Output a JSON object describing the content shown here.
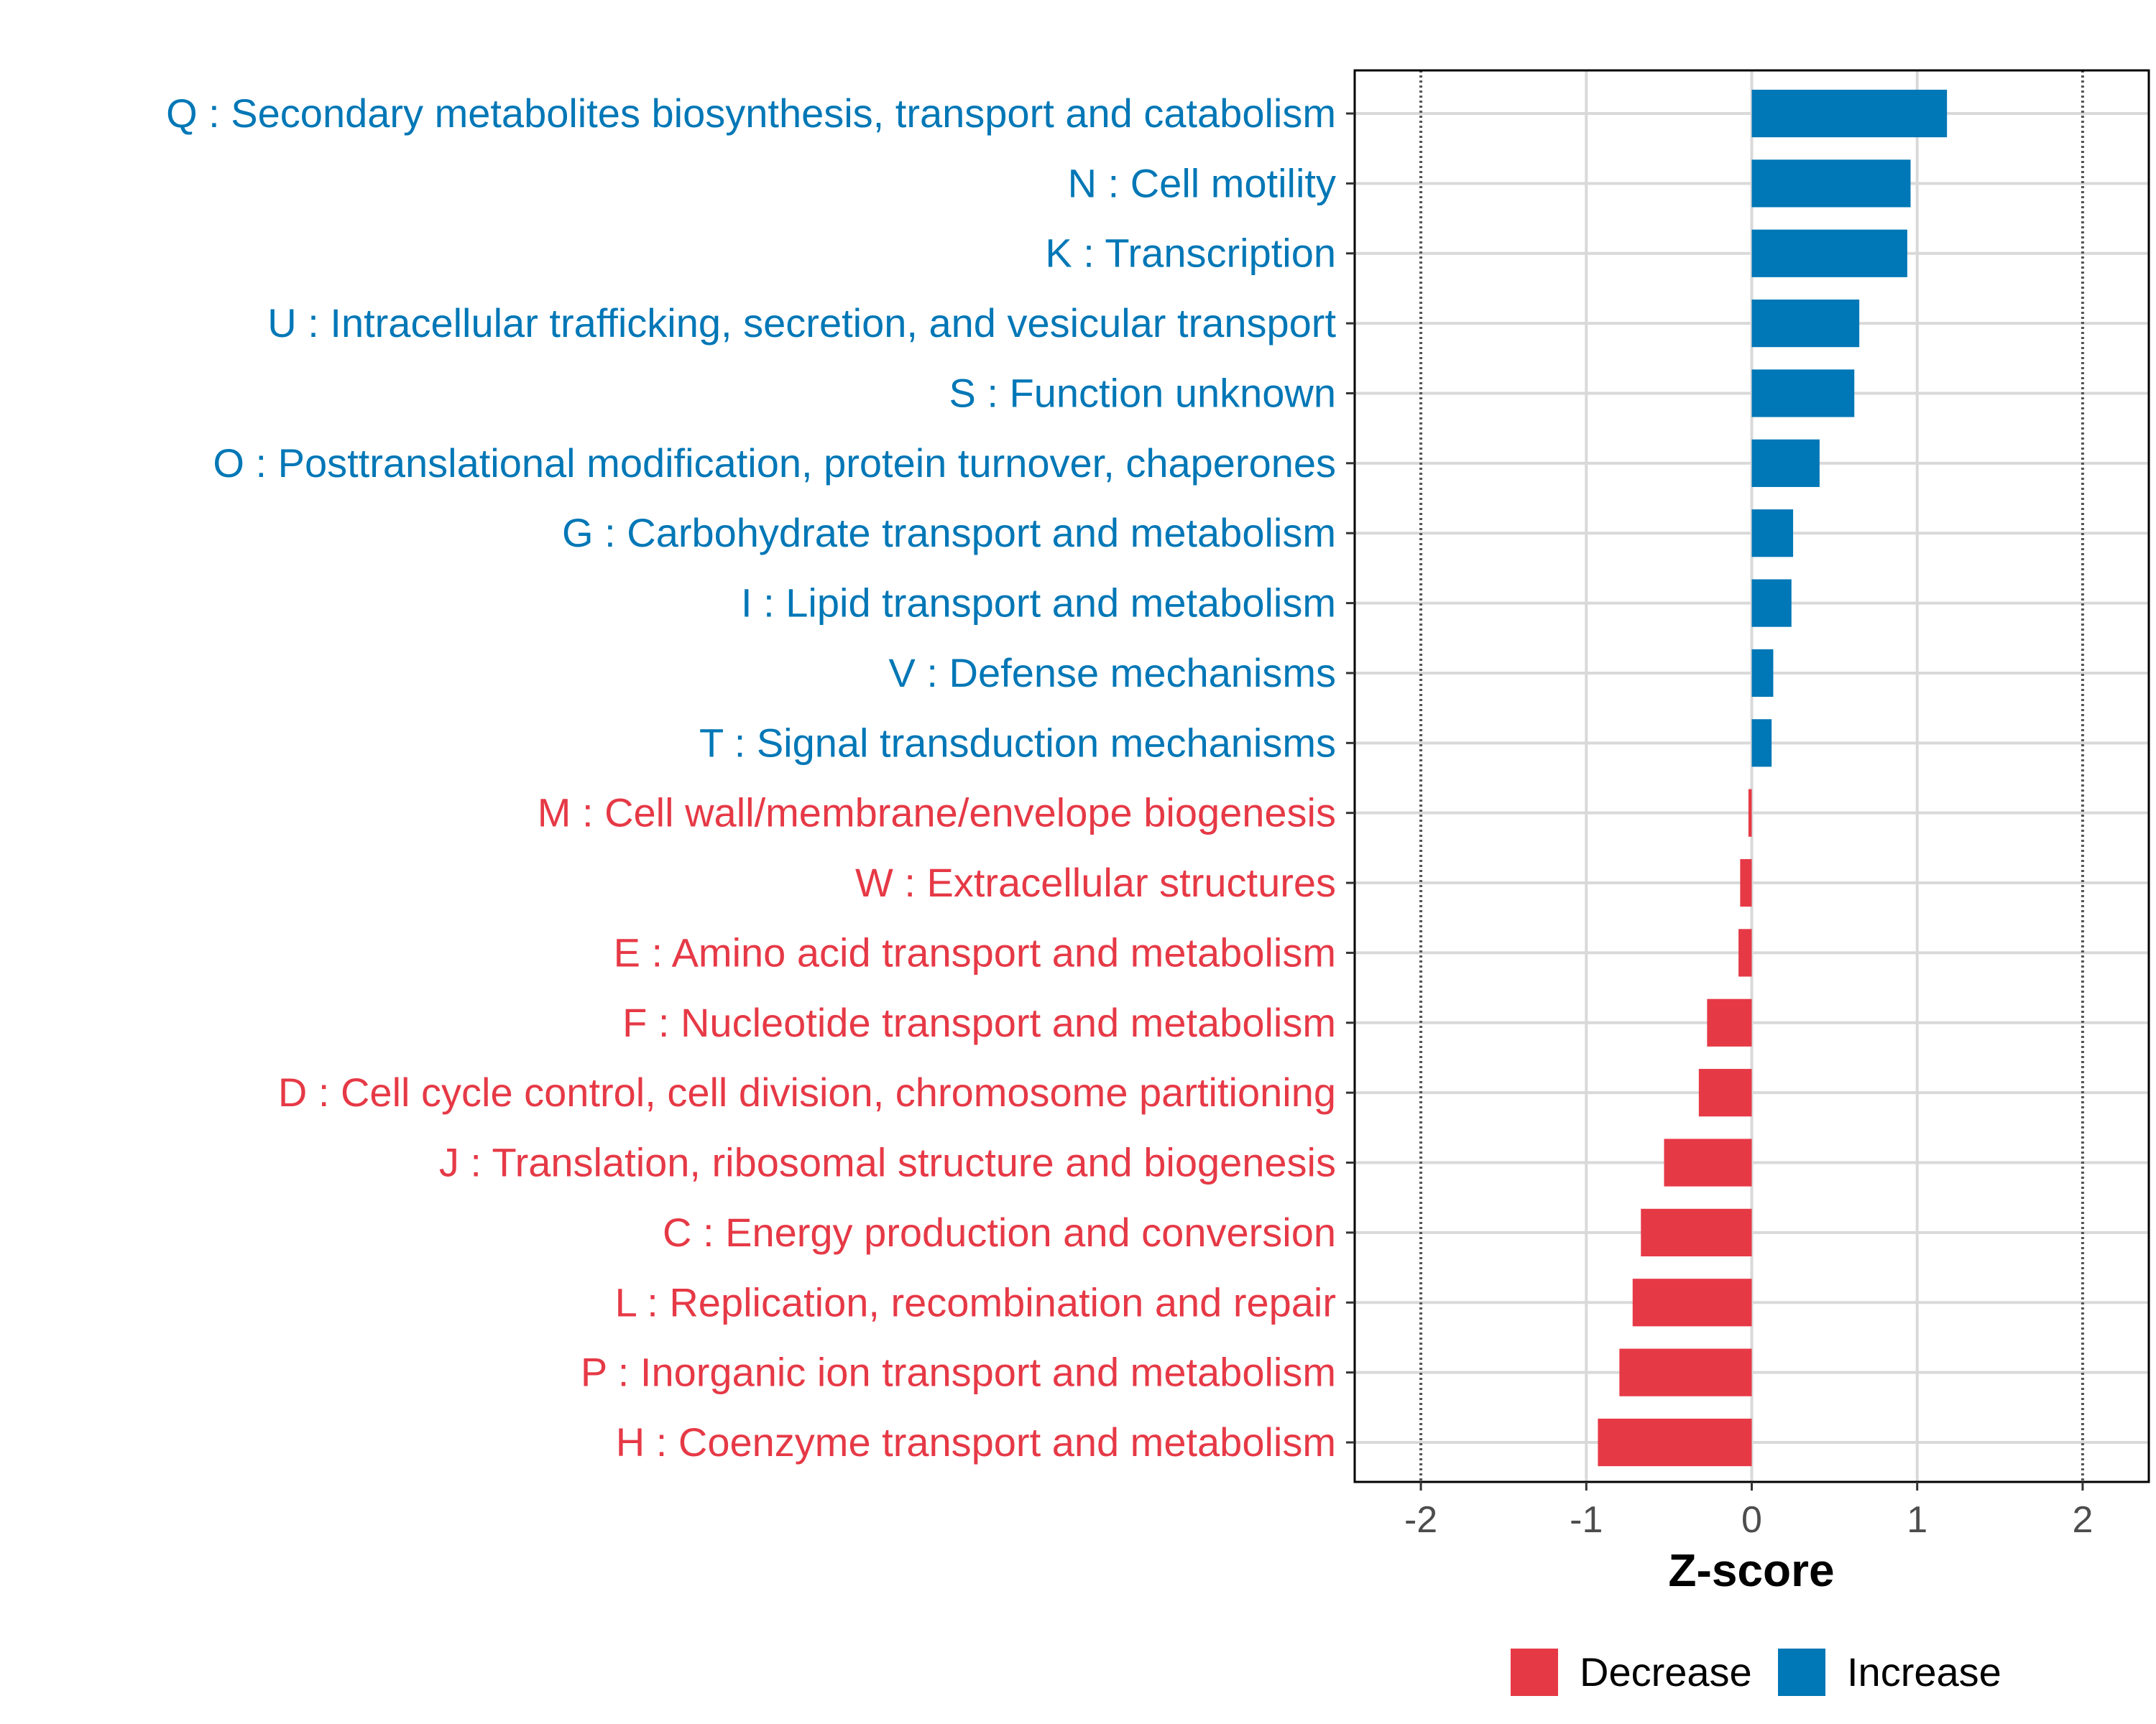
{
  "chart_data": {
    "type": "bar",
    "orientation": "horizontal",
    "title": "",
    "xlabel": "Z-score",
    "ylabel": "",
    "xlim": [
      -2.4,
      2.4
    ],
    "xticks": [
      -2,
      -1,
      0,
      1,
      2
    ],
    "xtick_labels": [
      "-2",
      "-1",
      "0",
      "1",
      "2"
    ],
    "reference_lines": [
      -2,
      2
    ],
    "grid": true,
    "categories": [
      "Q : Secondary metabolites biosynthesis, transport and catabolism",
      "N : Cell motility",
      "K : Transcription",
      "U : Intracellular trafficking, secretion, and vesicular transport",
      "S : Function unknown",
      "O : Posttranslational modification, protein turnover, chaperones",
      "G : Carbohydrate transport and metabolism",
      "I : Lipid transport and metabolism",
      "V : Defense mechanisms",
      "T : Signal transduction mechanisms",
      "M : Cell wall/membrane/envelope biogenesis",
      "W : Extracellular structures",
      "E : Amino acid transport and metabolism",
      "F : Nucleotide transport and metabolism",
      "D : Cell cycle control, cell division, chromosome partitioning",
      "J : Translation, ribosomal structure and biogenesis",
      "C : Energy production and conversion",
      "L : Replication, recombination and repair",
      "P : Inorganic ion transport and metabolism",
      "H : Coenzyme transport and metabolism"
    ],
    "values": [
      1.18,
      0.96,
      0.94,
      0.65,
      0.62,
      0.41,
      0.25,
      0.24,
      0.13,
      0.12,
      -0.02,
      -0.07,
      -0.08,
      -0.27,
      -0.32,
      -0.53,
      -0.67,
      -0.72,
      -0.8,
      -0.93
    ],
    "groups": [
      "Increase",
      "Increase",
      "Increase",
      "Increase",
      "Increase",
      "Increase",
      "Increase",
      "Increase",
      "Increase",
      "Increase",
      "Decrease",
      "Decrease",
      "Decrease",
      "Decrease",
      "Decrease",
      "Decrease",
      "Decrease",
      "Decrease",
      "Decrease",
      "Decrease"
    ],
    "legend": {
      "position": "bottom-right",
      "entries": [
        {
          "label": "Decrease",
          "color": "#E63946"
        },
        {
          "label": "Increase",
          "color": "#0077B6"
        }
      ]
    },
    "colors": {
      "Decrease": "#E63946",
      "Increase": "#0077B6",
      "grid": "#d9d9d9",
      "frame": "#000000",
      "reference_line": "#555555"
    }
  }
}
